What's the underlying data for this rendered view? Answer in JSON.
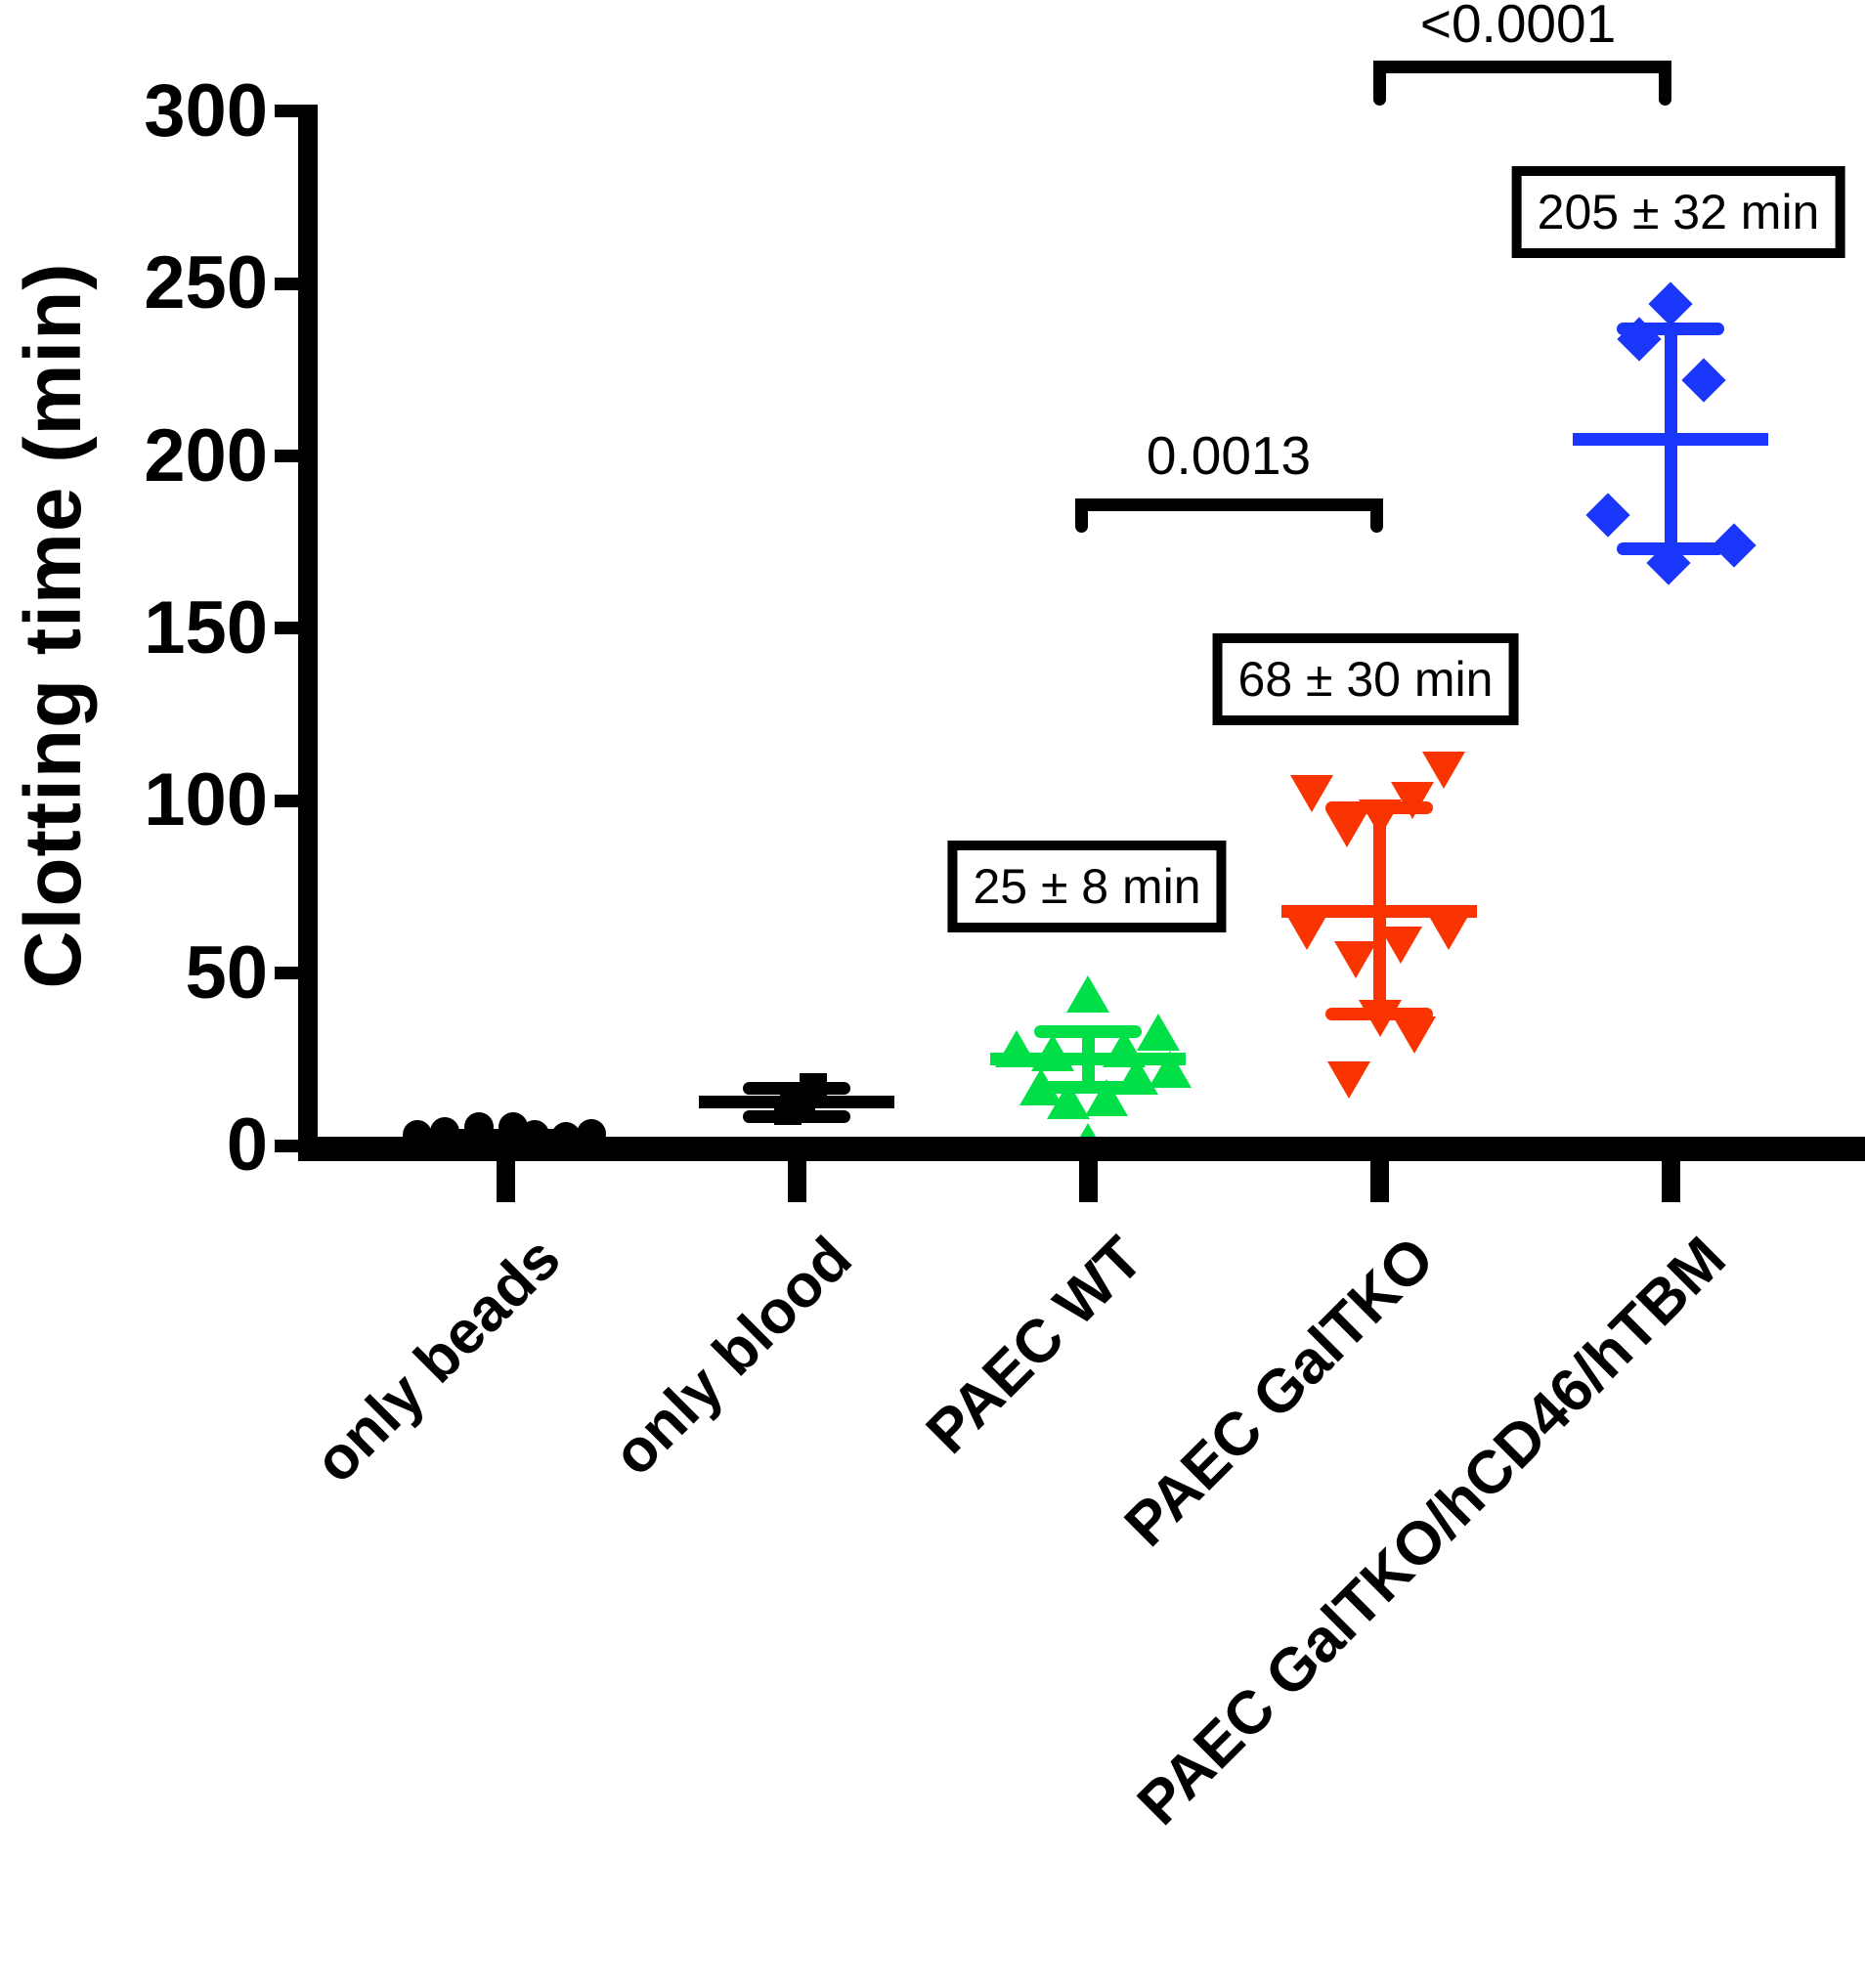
{
  "figure": {
    "background_color": "#ffffff",
    "axis_color": "#000000"
  },
  "chart_data": {
    "type": "scatter",
    "title": "",
    "xlabel": "",
    "ylabel": "Clotting time (min)",
    "ylim": [
      0,
      300
    ],
    "yticks": [
      0,
      50,
      100,
      150,
      200,
      250,
      300
    ],
    "grid": false,
    "legend": null,
    "categories": [
      "only beads",
      "only blood",
      "PAEC WT",
      "PAEC GalTKO",
      "PAEC GalTKO/hCD46/hTBM"
    ],
    "groups": [
      {
        "label": "only beads",
        "marker": "circle",
        "color": "#000000",
        "mean": 3,
        "sd": 1,
        "show_caps": false,
        "annotation": null,
        "points": [
          [
            5.5,
            -27
          ],
          [
            5.5,
            8
          ],
          [
            4,
            -62
          ],
          [
            3,
            30
          ],
          [
            2.5,
            62
          ],
          [
            3,
            -90
          ],
          [
            3.5,
            88
          ]
        ]
      },
      {
        "label": "only blood",
        "marker": "square",
        "color": "#000000",
        "mean": 12.5,
        "sd": 4,
        "show_caps": true,
        "annotation": null,
        "points": [
          [
            17,
            17
          ],
          [
            14,
            5
          ],
          [
            12.5,
            -3
          ],
          [
            10,
            -9
          ]
        ]
      },
      {
        "label": "PAEC WT",
        "marker": "triangle-up",
        "color": "#00DF47",
        "mean": 25,
        "sd": 8,
        "show_caps": true,
        "annotation": "25 ± 8 min",
        "points": [
          [
            44,
            0
          ],
          [
            33,
            72
          ],
          [
            28,
            -73
          ],
          [
            27,
            -36
          ],
          [
            28,
            37
          ],
          [
            22,
            84
          ],
          [
            17,
            -48
          ],
          [
            13,
            -20
          ],
          [
            14,
            19
          ],
          [
            20,
            50
          ],
          [
            1,
            0
          ]
        ]
      },
      {
        "label": "PAEC GalTKO",
        "marker": "triangle-down",
        "color": "#F93400",
        "mean": 68,
        "sd": 30,
        "show_caps": true,
        "annotation": "68 ± 30 min",
        "points": [
          [
            102,
            -69
          ],
          [
            109,
            66
          ],
          [
            100,
            34
          ],
          [
            92,
            -33
          ],
          [
            95,
            1
          ],
          [
            62,
            -74
          ],
          [
            62,
            71
          ],
          [
            58,
            22
          ],
          [
            54,
            -24
          ],
          [
            37,
            1
          ],
          [
            32,
            36
          ],
          [
            19,
            -31
          ]
        ]
      },
      {
        "label": "PAEC GalTKO/hCD46/hTBM",
        "marker": "diamond",
        "color": "#1B36FB",
        "mean": 205,
        "sd": 32,
        "show_caps": true,
        "annotation": "205 ± 32 min",
        "points": [
          [
            244,
            0
          ],
          [
            234,
            -32
          ],
          [
            222,
            34
          ],
          [
            183,
            -64
          ],
          [
            169,
            -2
          ],
          [
            174,
            65
          ]
        ]
      }
    ],
    "comparisons": [
      {
        "between": [
          "PAEC WT",
          "PAEC GalTKO"
        ],
        "p_label": "0.0013"
      },
      {
        "between": [
          "PAEC GalTKO",
          "PAEC GalTKO/hCD46/hTBM"
        ],
        "p_label": "<0.0001"
      }
    ]
  }
}
